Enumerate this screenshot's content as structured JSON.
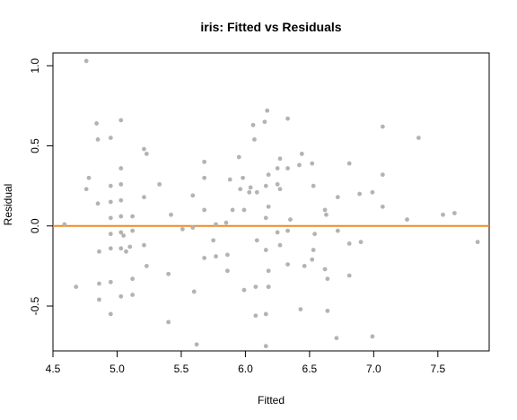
{
  "chart_data": {
    "type": "scatter",
    "title": "iris: Fitted vs Residuals",
    "xlabel": "Fitted",
    "ylabel": "Residual",
    "xlim": [
      4.5,
      7.9
    ],
    "ylim": [
      -0.78,
      1.08
    ],
    "x_ticks": [
      4.5,
      5.0,
      5.5,
      6.0,
      6.5,
      7.0,
      7.5
    ],
    "x_tick_labels": [
      "4.5",
      "5.0",
      "5.5",
      "6.0",
      "6.5",
      "7.0",
      "7.5"
    ],
    "y_ticks": [
      -0.5,
      0.0,
      0.5,
      1.0
    ],
    "y_tick_labels": [
      "-0.5",
      "0.0",
      "0.5",
      "1.0"
    ],
    "point_color": "#b3b3b3",
    "reference_line": {
      "y": 0,
      "color": "#f08a24"
    },
    "grid": false,
    "legend": "none",
    "points": [
      [
        4.59,
        0.01
      ],
      [
        4.68,
        -0.38
      ],
      [
        4.76,
        1.03
      ],
      [
        4.76,
        0.23
      ],
      [
        4.78,
        0.3
      ],
      [
        4.84,
        0.64
      ],
      [
        4.85,
        0.54
      ],
      [
        4.85,
        0.14
      ],
      [
        4.86,
        -0.16
      ],
      [
        4.86,
        -0.36
      ],
      [
        4.86,
        -0.46
      ],
      [
        4.95,
        0.55
      ],
      [
        4.95,
        0.25
      ],
      [
        4.95,
        0.15
      ],
      [
        4.95,
        0.05
      ],
      [
        4.95,
        -0.05
      ],
      [
        4.95,
        -0.14
      ],
      [
        4.95,
        -0.35
      ],
      [
        4.95,
        -0.55
      ],
      [
        5.03,
        0.66
      ],
      [
        5.03,
        0.36
      ],
      [
        5.03,
        0.26
      ],
      [
        5.03,
        0.16
      ],
      [
        5.03,
        0.06
      ],
      [
        5.03,
        -0.04
      ],
      [
        5.03,
        -0.14
      ],
      [
        5.03,
        -0.44
      ],
      [
        5.05,
        -0.06
      ],
      [
        5.07,
        -0.16
      ],
      [
        5.1,
        -0.13
      ],
      [
        5.12,
        -0.33
      ],
      [
        5.12,
        -0.43
      ],
      [
        5.12,
        -0.03
      ],
      [
        5.12,
        0.06
      ],
      [
        5.21,
        0.48
      ],
      [
        5.21,
        0.18
      ],
      [
        5.21,
        -0.12
      ],
      [
        5.23,
        0.45
      ],
      [
        5.23,
        -0.25
      ],
      [
        5.33,
        0.26
      ],
      [
        5.4,
        -0.3
      ],
      [
        5.4,
        -0.6
      ],
      [
        5.42,
        0.07
      ],
      [
        5.51,
        -0.02
      ],
      [
        5.59,
        0.19
      ],
      [
        5.6,
        -0.41
      ],
      [
        5.59,
        -0.01
      ],
      [
        5.62,
        -0.74
      ],
      [
        5.68,
        0.4
      ],
      [
        5.68,
        0.3
      ],
      [
        5.68,
        0.1
      ],
      [
        5.68,
        -0.2
      ],
      [
        5.75,
        -0.09
      ],
      [
        5.77,
        0.01
      ],
      [
        5.77,
        -0.19
      ],
      [
        5.85,
        0.02
      ],
      [
        5.86,
        -0.18
      ],
      [
        5.86,
        -0.28
      ],
      [
        5.88,
        0.29
      ],
      [
        5.9,
        0.1
      ],
      [
        5.95,
        0.43
      ],
      [
        5.96,
        0.23
      ],
      [
        5.98,
        0.3
      ],
      [
        5.99,
        -0.4
      ],
      [
        5.99,
        0.1
      ],
      [
        6.03,
        0.21
      ],
      [
        6.04,
        0.24
      ],
      [
        6.06,
        0.63
      ],
      [
        6.07,
        0.54
      ],
      [
        6.08,
        -0.38
      ],
      [
        6.08,
        -0.56
      ],
      [
        6.09,
        0.21
      ],
      [
        6.09,
        -0.09
      ],
      [
        6.15,
        0.65
      ],
      [
        6.16,
        0.25
      ],
      [
        6.16,
        0.05
      ],
      [
        6.16,
        -0.15
      ],
      [
        6.16,
        -0.55
      ],
      [
        6.16,
        -0.75
      ],
      [
        6.17,
        0.72
      ],
      [
        6.18,
        0.32
      ],
      [
        6.18,
        0.12
      ],
      [
        6.18,
        -0.28
      ],
      [
        6.18,
        -0.38
      ],
      [
        6.18,
        -0.38
      ],
      [
        6.25,
        0.26
      ],
      [
        6.25,
        0.36
      ],
      [
        6.25,
        -0.04
      ],
      [
        6.27,
        0.42
      ],
      [
        6.27,
        0.23
      ],
      [
        6.27,
        -0.12
      ],
      [
        6.33,
        0.67
      ],
      [
        6.33,
        0.36
      ],
      [
        6.33,
        -0.03
      ],
      [
        6.33,
        -0.24
      ],
      [
        6.35,
        0.04
      ],
      [
        6.42,
        0.38
      ],
      [
        6.43,
        -0.52
      ],
      [
        6.44,
        0.45
      ],
      [
        6.46,
        -0.25
      ],
      [
        6.52,
        0.39
      ],
      [
        6.52,
        -0.21
      ],
      [
        6.53,
        0.25
      ],
      [
        6.53,
        -0.15
      ],
      [
        6.54,
        -0.05
      ],
      [
        6.62,
        0.1
      ],
      [
        6.62,
        -0.27
      ],
      [
        6.63,
        0.07
      ],
      [
        6.64,
        -0.33
      ],
      [
        6.64,
        -0.53
      ],
      [
        6.71,
        -0.7
      ],
      [
        6.72,
        0.18
      ],
      [
        6.72,
        -0.03
      ],
      [
        6.81,
        0.39
      ],
      [
        6.81,
        -0.11
      ],
      [
        6.81,
        -0.31
      ],
      [
        6.89,
        0.2
      ],
      [
        6.9,
        -0.1
      ],
      [
        6.99,
        0.21
      ],
      [
        6.99,
        -0.69
      ],
      [
        7.07,
        0.62
      ],
      [
        7.07,
        0.32
      ],
      [
        7.07,
        0.12
      ],
      [
        7.26,
        0.04
      ],
      [
        7.35,
        0.55
      ],
      [
        7.54,
        0.07
      ],
      [
        7.63,
        0.08
      ],
      [
        7.81,
        -0.1
      ]
    ]
  }
}
